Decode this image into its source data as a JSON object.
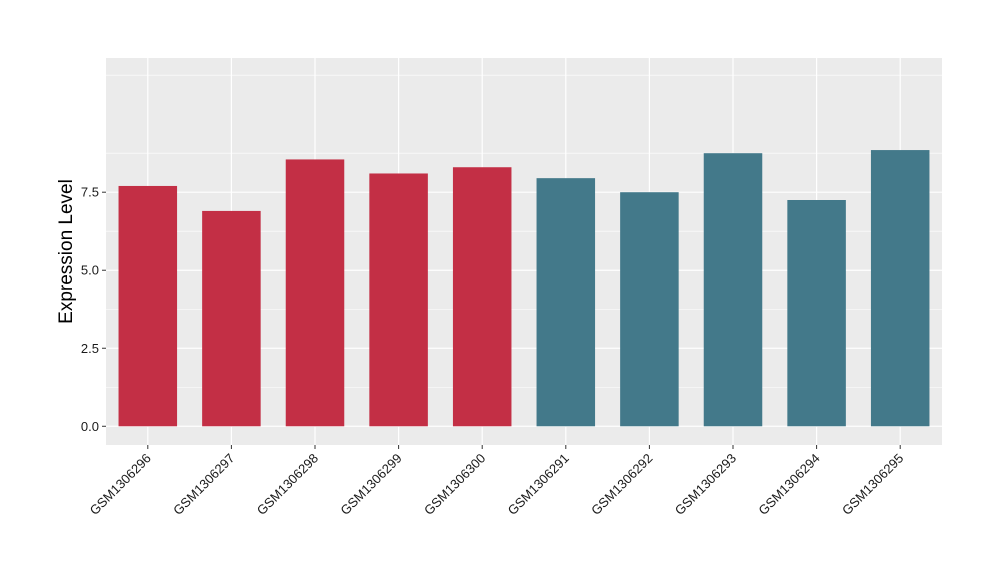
{
  "chart_data": {
    "type": "bar",
    "title": "",
    "xlabel": "",
    "ylabel": "Expression Level",
    "ylim": [
      -0.6,
      11.8
    ],
    "yticks": [
      0.0,
      2.5,
      5.0,
      7.5
    ],
    "ytick_labels": [
      "0.0",
      "2.5",
      "5.0",
      "7.5"
    ],
    "grid": true,
    "legend": "none",
    "categories": [
      "GSM1306296",
      "GSM1306297",
      "GSM1306298",
      "GSM1306299",
      "GSM1306300",
      "GSM1306291",
      "GSM1306292",
      "GSM1306293",
      "GSM1306294",
      "GSM1306295"
    ],
    "values": [
      7.7,
      6.9,
      8.55,
      8.1,
      8.3,
      7.95,
      7.5,
      8.75,
      7.25,
      8.85
    ],
    "bar_colors": [
      "#c32f45",
      "#c32f45",
      "#c32f45",
      "#c32f45",
      "#c32f45",
      "#43798a",
      "#43798a",
      "#43798a",
      "#43798a",
      "#43798a"
    ],
    "panel_background": "#ebebeb",
    "gridline_color": "#ffffff"
  }
}
